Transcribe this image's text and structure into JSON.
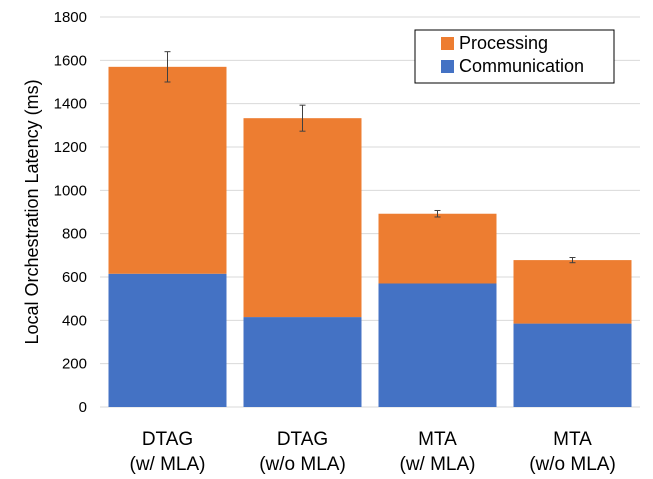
{
  "chart_data": {
    "type": "bar",
    "stacked": true,
    "title": "",
    "xlabel": "",
    "ylabel": "Local Orchestration Latency (ms)",
    "ylim": [
      0,
      1800
    ],
    "yticks": [
      "0",
      "200",
      "400",
      "600",
      "800",
      "1000",
      "1200",
      "1400",
      "1600",
      "1800"
    ],
    "grid": true,
    "legend_position": "top-right",
    "categories": [
      [
        "DTAG",
        "(w/ MLA)"
      ],
      [
        "DTAG",
        "(w/o MLA)"
      ],
      [
        "MTA",
        "(w/ MLA)"
      ],
      [
        "MTA",
        "(w/o MLA)"
      ]
    ],
    "series": [
      {
        "name": "Communication",
        "color": "#4472C4",
        "values": [
          615,
          415,
          570,
          385
        ]
      },
      {
        "name": "Processing",
        "color": "#ED7D31",
        "values": [
          955,
          918,
          322,
          293
        ]
      }
    ],
    "totals_error": [
      70,
      60,
      15,
      12
    ],
    "legend_order": [
      "Processing",
      "Communication"
    ]
  }
}
